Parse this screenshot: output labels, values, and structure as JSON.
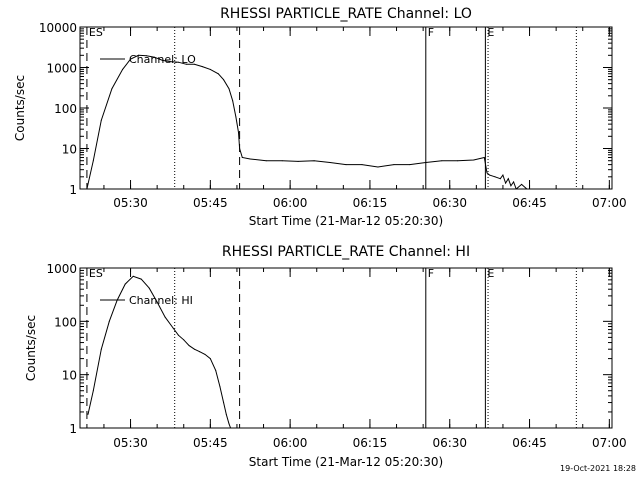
{
  "footer": {
    "timestamp": "19-Oct-2021 18:28"
  },
  "colors": {
    "background": "#ffffff",
    "foreground": "#000000"
  },
  "chart_data": [
    {
      "type": "line",
      "title": "RHESSI PARTICLE_RATE Channel: LO",
      "xlabel": "Start Time (21-Mar-12 05:20:30)",
      "ylabel": "Counts/sec",
      "yscale": "log",
      "ylim": [
        1,
        10000
      ],
      "xlim_minutes": [
        0,
        100
      ],
      "x_ticks": [
        {
          "t": 9.5,
          "label": "05:30"
        },
        {
          "t": 24.5,
          "label": "05:45"
        },
        {
          "t": 39.5,
          "label": "06:00"
        },
        {
          "t": 54.5,
          "label": "06:15"
        },
        {
          "t": 69.5,
          "label": "06:30"
        },
        {
          "t": 84.5,
          "label": "06:45"
        },
        {
          "t": 99.5,
          "label": "07:00"
        }
      ],
      "y_ticks": [
        {
          "v": 1,
          "label": "1"
        },
        {
          "v": 10,
          "label": "10"
        },
        {
          "v": 100,
          "label": "100"
        },
        {
          "v": 1000,
          "label": "1000"
        },
        {
          "v": 10000,
          "label": "10000"
        }
      ],
      "legend": {
        "label": "Channel: LO",
        "position": "top-left"
      },
      "markers": [
        {
          "t": 1.3,
          "style": "dashed",
          "label": "ES"
        },
        {
          "t": 17.8,
          "style": "dotted",
          "label": ""
        },
        {
          "t": 30.0,
          "style": "dashed",
          "label": ""
        },
        {
          "t": 65.0,
          "style": "solid",
          "label": "F"
        },
        {
          "t": 76.2,
          "style": "solid",
          "label": "E"
        },
        {
          "t": 76.7,
          "style": "dotted",
          "label": ""
        },
        {
          "t": 93.3,
          "style": "dotted",
          "label": ""
        }
      ],
      "series": [
        {
          "name": "LO",
          "x": [
            1.3,
            2.5,
            4,
            6,
            8,
            9.5,
            11,
            12.5,
            14,
            15.5,
            17,
            18.5,
            20,
            21.5,
            23,
            24.5,
            26,
            27,
            28,
            28.7,
            29.3,
            29.8,
            30.0,
            30.5,
            32,
            35,
            38,
            41,
            44,
            47,
            50,
            53,
            56,
            59,
            62,
            65,
            68,
            71,
            74,
            76,
            76.5,
            77,
            78,
            79,
            79.5,
            80,
            80.5,
            81,
            81.5,
            82,
            83,
            84,
            85
          ],
          "y": [
            1,
            5,
            50,
            300,
            900,
            1600,
            2000,
            1950,
            1800,
            1500,
            1400,
            1350,
            1200,
            1200,
            1050,
            900,
            700,
            500,
            300,
            150,
            60,
            25,
            10,
            6,
            5.5,
            5,
            5,
            4.8,
            5,
            4.5,
            4,
            4,
            3.5,
            4,
            4,
            4.5,
            5,
            5,
            5.2,
            6,
            2.5,
            2.2,
            2.0,
            1.8,
            2.2,
            1.4,
            1.8,
            1.2,
            1.5,
            1.0,
            1.3,
            1.0,
            1.0
          ]
        }
      ]
    },
    {
      "type": "line",
      "title": "RHESSI PARTICLE_RATE Channel: HI",
      "xlabel": "Start Time (21-Mar-12 05:20:30)",
      "ylabel": "Counts/sec",
      "yscale": "log",
      "ylim": [
        1,
        1000
      ],
      "xlim_minutes": [
        0,
        100
      ],
      "x_ticks": [
        {
          "t": 9.5,
          "label": "05:30"
        },
        {
          "t": 24.5,
          "label": "05:45"
        },
        {
          "t": 39.5,
          "label": "06:00"
        },
        {
          "t": 54.5,
          "label": "06:15"
        },
        {
          "t": 69.5,
          "label": "06:30"
        },
        {
          "t": 84.5,
          "label": "06:45"
        },
        {
          "t": 99.5,
          "label": "07:00"
        }
      ],
      "y_ticks": [
        {
          "v": 1,
          "label": "1"
        },
        {
          "v": 10,
          "label": "10"
        },
        {
          "v": 100,
          "label": "100"
        },
        {
          "v": 1000,
          "label": "1000"
        }
      ],
      "legend": {
        "label": "Channel: HI",
        "position": "top-left"
      },
      "markers": [
        {
          "t": 1.3,
          "style": "dashed",
          "label": "ES"
        },
        {
          "t": 17.8,
          "style": "dotted",
          "label": ""
        },
        {
          "t": 30.0,
          "style": "dashed",
          "label": ""
        },
        {
          "t": 65.0,
          "style": "solid",
          "label": "F"
        },
        {
          "t": 76.2,
          "style": "solid",
          "label": "E"
        },
        {
          "t": 76.7,
          "style": "dotted",
          "label": ""
        },
        {
          "t": 93.3,
          "style": "dotted",
          "label": ""
        }
      ],
      "series": [
        {
          "name": "HI",
          "x": [
            1.5,
            2.5,
            4,
            5.5,
            7,
            8.5,
            10,
            11.5,
            13,
            14.5,
            16,
            17.5,
            18.5,
            19.5,
            20.5,
            21.5,
            22.5,
            23.5,
            24.5,
            25.5,
            26.3,
            27,
            27.5,
            28,
            28.3
          ],
          "y": [
            1.8,
            5,
            30,
            100,
            250,
            500,
            700,
            620,
            420,
            230,
            120,
            75,
            55,
            45,
            35,
            30,
            27,
            24,
            20,
            12,
            6,
            3,
            1.8,
            1.2,
            1.0
          ]
        }
      ]
    }
  ]
}
